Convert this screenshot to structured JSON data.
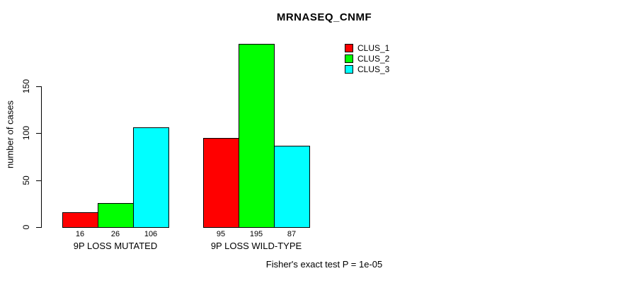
{
  "title": "MRNASEQ_CNMF",
  "chart_data": {
    "type": "bar",
    "title": "MRNASEQ_CNMF",
    "xlabel": "",
    "ylabel": "number of cases",
    "ylim": [
      0,
      150
    ],
    "yticks": [
      0,
      50,
      100,
      150
    ],
    "grid": false,
    "bar_value_labels": true,
    "legend_position": "inside-top-right",
    "categories": [
      "9P LOSS MUTATED",
      "9P LOSS WILD-TYPE"
    ],
    "series": [
      {
        "name": "CLUS_1",
        "color": "#ff0000",
        "values": [
          16,
          95
        ]
      },
      {
        "name": "CLUS_2",
        "color": "#00ff00",
        "values": [
          26,
          195
        ]
      },
      {
        "name": "CLUS_3",
        "color": "#00ffff",
        "values": [
          106,
          87
        ]
      }
    ],
    "annotation": "Fisher's exact test P = 1e-05"
  },
  "colors": {
    "background": "#ffffff",
    "axis": "#000000",
    "bar_border": "#000000",
    "clus_1": "#ff0000",
    "clus_2": "#00ff00",
    "clus_3": "#00ffff"
  }
}
